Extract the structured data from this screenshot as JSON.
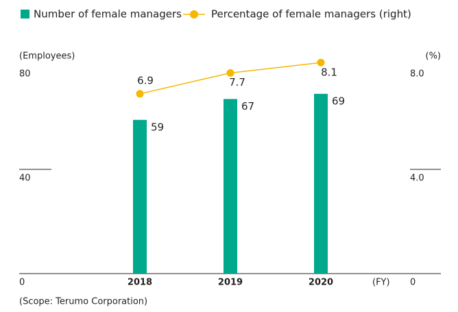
{
  "chart_data": {
    "type": "bar",
    "categories": [
      "2018",
      "2019",
      "2020"
    ],
    "series": [
      {
        "name": "Number of female managers",
        "color": "#00a98b",
        "values": [
          59,
          67,
          69
        ]
      },
      {
        "name": "Percentage of female managers (right)",
        "type": "line",
        "axis": "y2",
        "color": "#f5b700",
        "values": [
          6.9,
          7.7,
          8.1
        ]
      }
    ],
    "y_label": "(Employees)",
    "y2_label": "(%)",
    "x_label": "(FY)",
    "ylim": [
      0,
      80
    ],
    "yticks": [
      0,
      40,
      80
    ],
    "y2lim": [
      0,
      8
    ],
    "y2ticks": [
      0,
      {
        "value": 4,
        "label": "4.0"
      },
      {
        "value": 8,
        "label": "8.0"
      }
    ],
    "note": "(Scope: Terumo Corporation)"
  }
}
